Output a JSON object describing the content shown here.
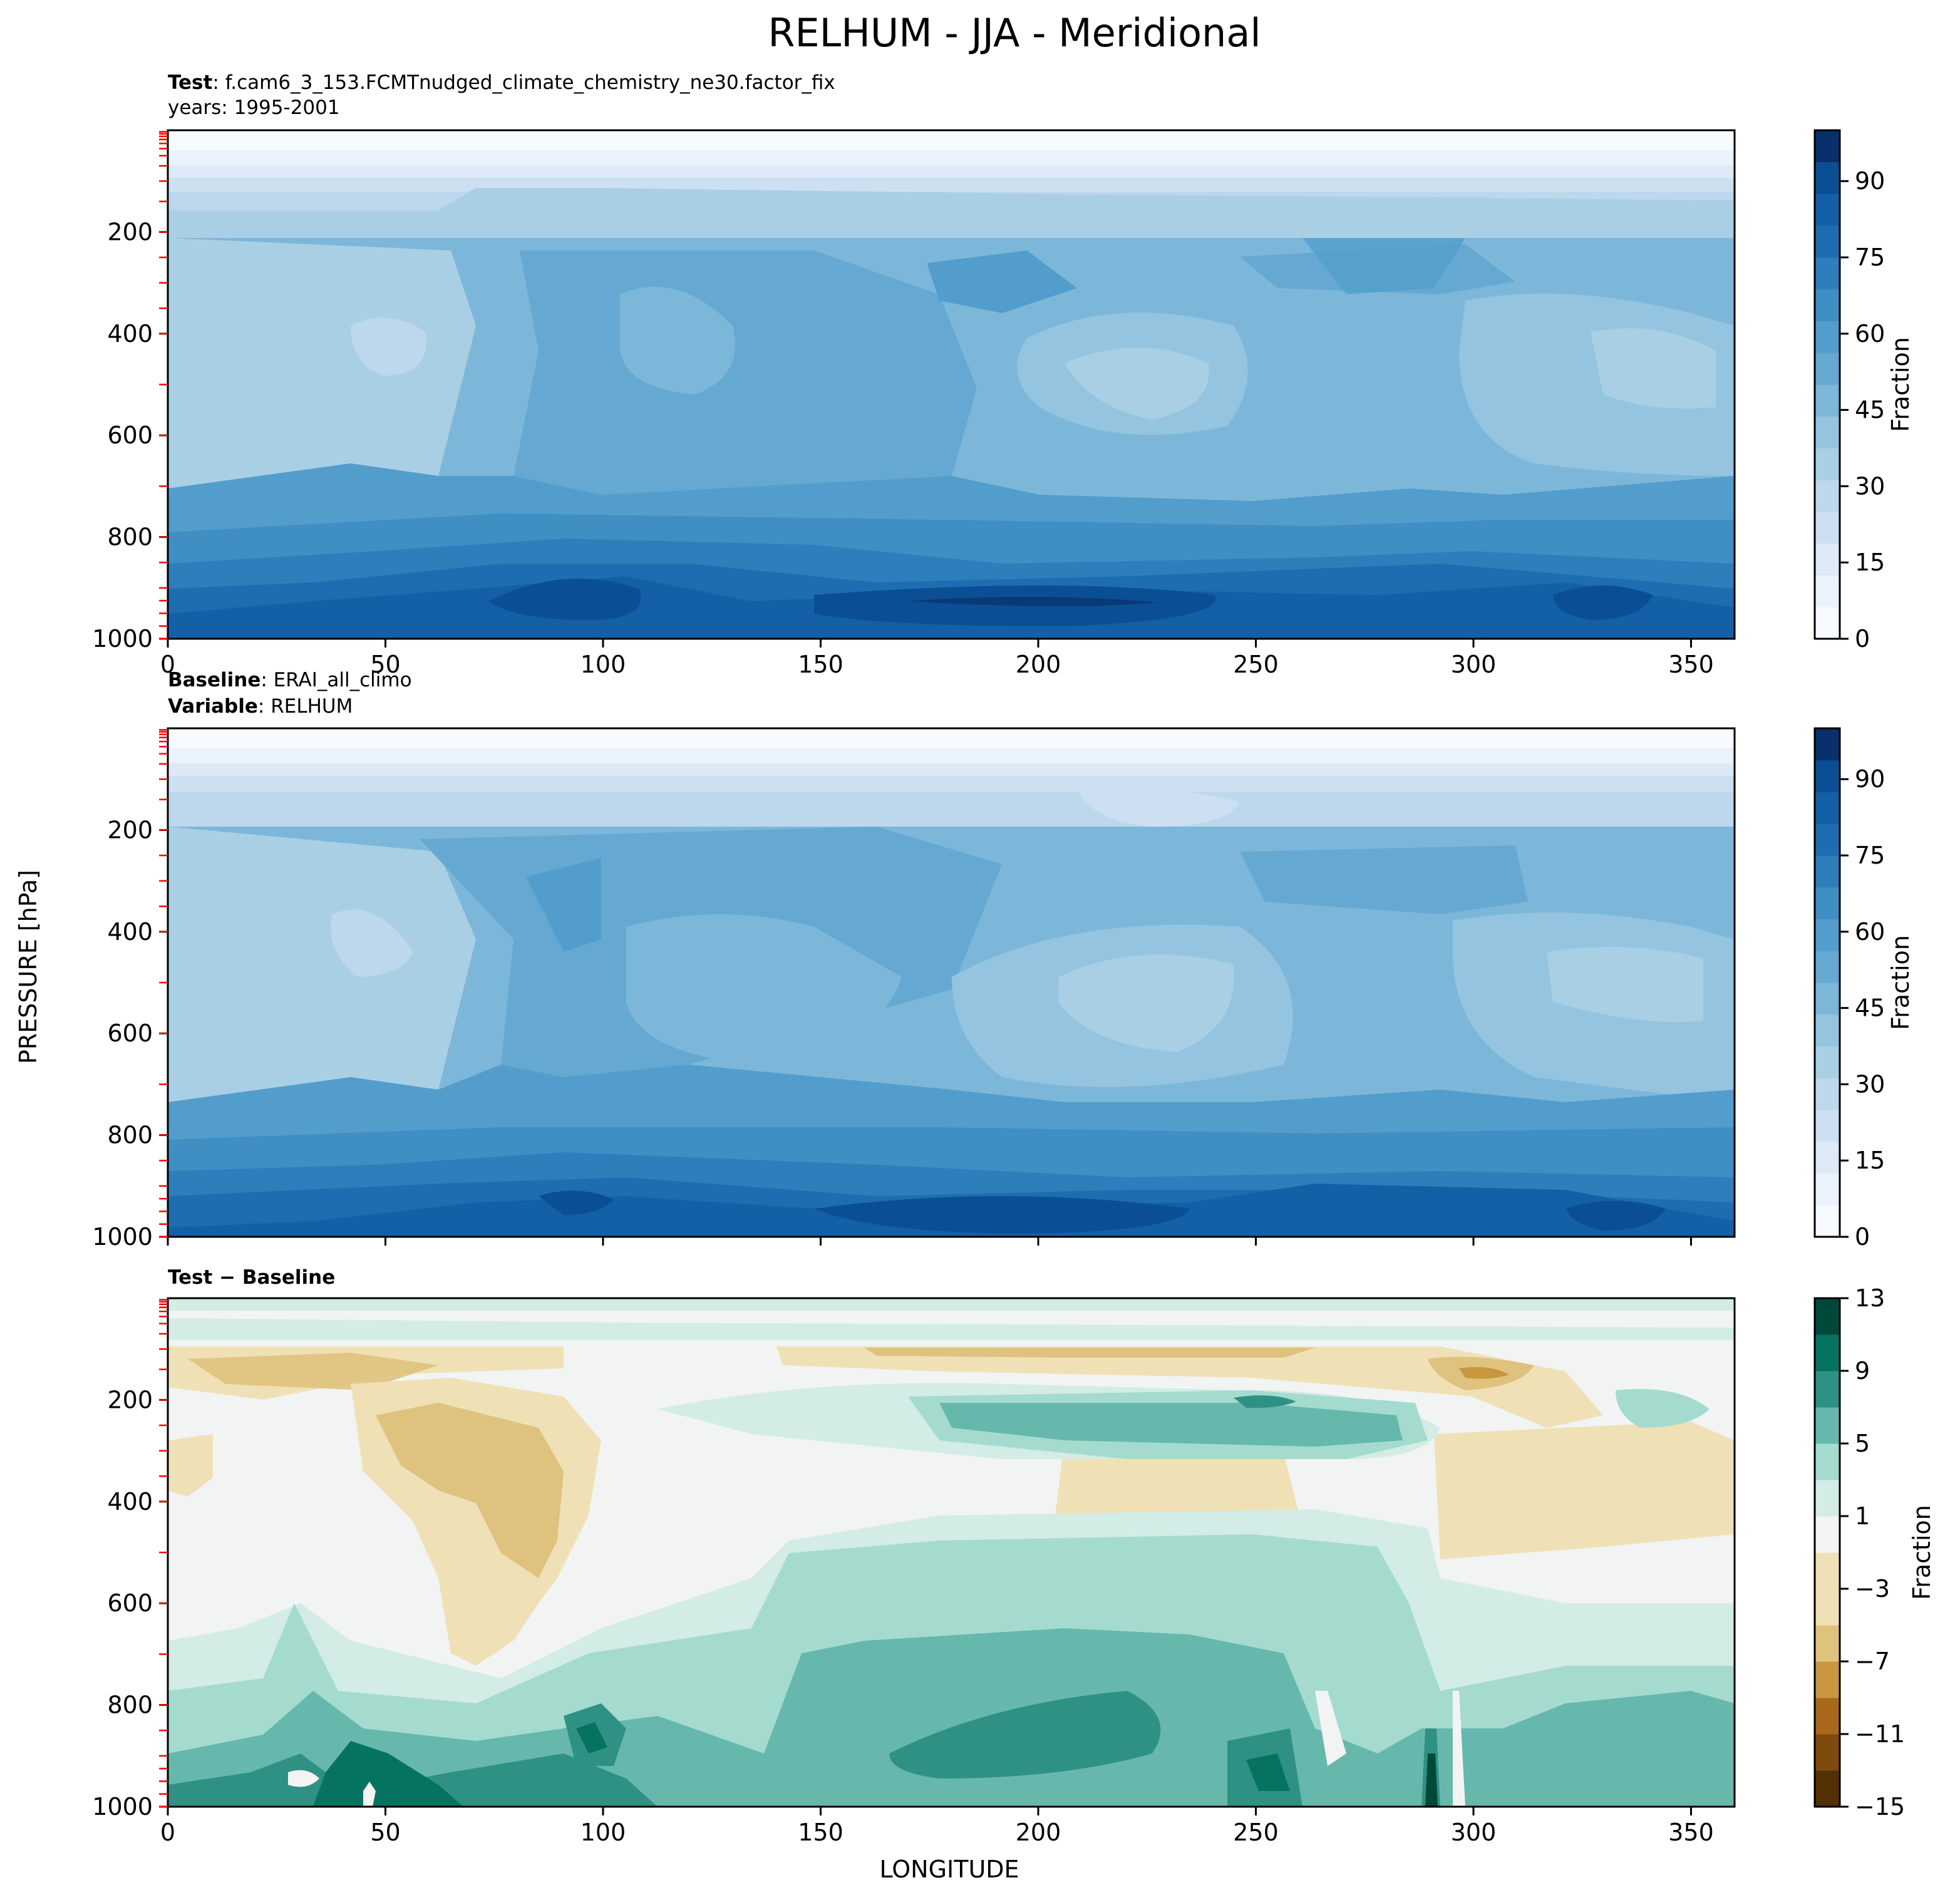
{
  "figure": {
    "title": "RELHUM - JJA - Meridional",
    "xlabel": "LONGITUDE",
    "ylabel": "PRESSURE [hPa]"
  },
  "panels": {
    "test": {
      "line1_bold": "Test",
      "line1_text": ": f.cam6_3_153.FCMTnudged_climate_chemistry_ne30.factor_fix",
      "line2_text": "years: 1995-2001"
    },
    "baseline": {
      "line1_bold": "Baseline",
      "line1_text": ": ERAI_all_climo",
      "line2_bold": "Variable",
      "line2_text": ": RELHUM"
    },
    "diff": {
      "line1_bold": "Test − Baseline"
    }
  },
  "colors": {
    "blues": [
      "#f7fbff",
      "#eaf2fb",
      "#dce9f6",
      "#cde0f2",
      "#bdd7ec",
      "#a9cfe5",
      "#94c4df",
      "#7cb7da",
      "#65a9d3",
      "#529dcc",
      "#3f8ec4",
      "#2f7ebc",
      "#1f6db1",
      "#1360a7",
      "#0a4f94",
      "#08306b"
    ],
    "brbg_neg": [
      "#543005",
      "#7f4a0e",
      "#a9691c",
      "#c8973f",
      "#dfc27d",
      "#f0e0b6"
    ],
    "brbg_pos": [
      "#f2f4f3",
      "#d3ece6",
      "#a5dbcf",
      "#66b8ad",
      "#2f9184",
      "#05735f",
      "#00483a"
    ],
    "accent_ticks": "#ff0000"
  },
  "chart_data": [
    {
      "type": "heatmap",
      "name": "Test",
      "xlim": [
        0,
        360
      ],
      "ylim": [
        1000,
        0
      ],
      "x_ticks": [
        0,
        50,
        100,
        150,
        200,
        250,
        300,
        350
      ],
      "x_tick_labels": [
        "0",
        "50",
        "100",
        "150",
        "200",
        "250",
        "300",
        "350"
      ],
      "y_ticks": [
        200,
        400,
        600,
        800,
        1000
      ],
      "y_tick_labels": [
        "200",
        "400",
        "600",
        "800",
        "1000"
      ],
      "colorbar": {
        "label": "Fraction",
        "range": [
          0,
          100
        ],
        "ticks": [
          0,
          15,
          30,
          45,
          60,
          75,
          90
        ],
        "tick_labels": [
          "0",
          "15",
          "30",
          "45",
          "60",
          "75",
          "90"
        ]
      }
    },
    {
      "type": "heatmap",
      "name": "Baseline",
      "xlim": [
        0,
        360
      ],
      "ylim": [
        1000,
        0
      ],
      "x_ticks": [
        0,
        50,
        100,
        150,
        200,
        250,
        300,
        350
      ],
      "x_tick_labels": [],
      "y_ticks": [
        200,
        400,
        600,
        800,
        1000
      ],
      "y_tick_labels": [
        "200",
        "400",
        "600",
        "800",
        "1000"
      ],
      "colorbar": {
        "label": "Fraction",
        "range": [
          0,
          100
        ],
        "ticks": [
          0,
          15,
          30,
          45,
          60,
          75,
          90
        ],
        "tick_labels": [
          "0",
          "15",
          "30",
          "45",
          "60",
          "75",
          "90"
        ]
      }
    },
    {
      "type": "heatmap",
      "name": "Test − Baseline",
      "xlim": [
        0,
        360
      ],
      "ylim": [
        1000,
        0
      ],
      "x_ticks": [
        0,
        50,
        100,
        150,
        200,
        250,
        300,
        350
      ],
      "x_tick_labels": [
        "0",
        "50",
        "100",
        "150",
        "200",
        "250",
        "300",
        "350"
      ],
      "y_ticks": [
        200,
        400,
        600,
        800,
        1000
      ],
      "y_tick_labels": [
        "200",
        "400",
        "600",
        "800",
        "1000"
      ],
      "colorbar": {
        "label": "Fraction",
        "range": [
          -15,
          13
        ],
        "ticks": [
          13,
          9,
          5,
          1,
          -3,
          -7,
          -11,
          -15
        ],
        "tick_labels": [
          "13",
          "9",
          "5",
          "1",
          "−3",
          "−7",
          "−11",
          "−15"
        ]
      }
    }
  ]
}
